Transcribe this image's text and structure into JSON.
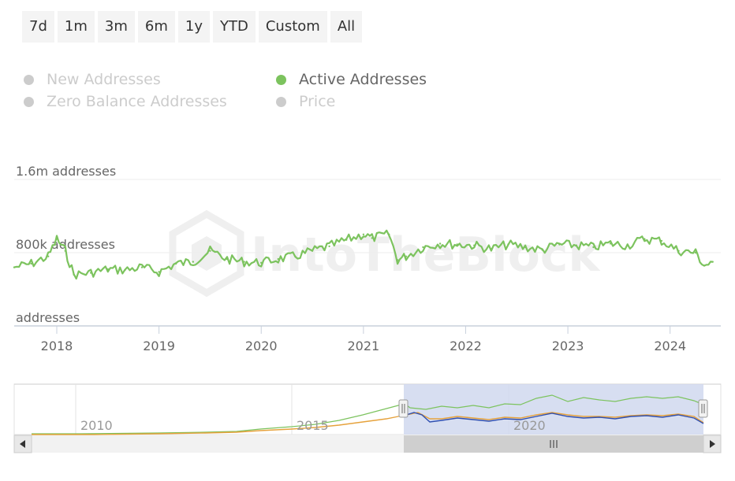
{
  "range_buttons": [
    "7d",
    "1m",
    "3m",
    "6m",
    "1y",
    "YTD",
    "Custom",
    "All"
  ],
  "legend": [
    {
      "label": "New Addresses",
      "active": false
    },
    {
      "label": "Active Addresses",
      "active": true
    },
    {
      "label": "Zero Balance Addresses",
      "active": false
    },
    {
      "label": "Price",
      "active": false
    }
  ],
  "watermark": "IntoTheBlock",
  "colors": {
    "active": "#7cc35e",
    "inactive": "#cccccc",
    "selection": "#d0d8ee",
    "price": "#e6a23c",
    "blue": "#2f4fb0"
  },
  "chart_data": {
    "type": "line",
    "x_ticks": [
      "2018",
      "2019",
      "2020",
      "2021",
      "2022",
      "2023",
      "2024"
    ],
    "y_tick_labels": [
      "1.6m addresses",
      "800k addresses",
      "addresses"
    ],
    "y_ticks": [
      1600000,
      800000,
      0
    ],
    "ylim": [
      0,
      1600000
    ],
    "xlim": [
      "2017-08-01",
      "2024-06-30"
    ],
    "series": [
      {
        "name": "Active Addresses",
        "x": [
          "2017-08",
          "2017-10",
          "2017-12",
          "2018-01",
          "2018-02",
          "2018-03",
          "2018-05",
          "2018-07",
          "2018-09",
          "2018-11",
          "2019-01",
          "2019-03",
          "2019-05",
          "2019-07",
          "2019-09",
          "2019-11",
          "2020-01",
          "2020-03",
          "2020-05",
          "2020-07",
          "2020-09",
          "2020-11",
          "2021-01",
          "2021-02",
          "2021-04",
          "2021-05",
          "2021-06",
          "2021-08",
          "2021-10",
          "2021-12",
          "2022-02",
          "2022-04",
          "2022-06",
          "2022-08",
          "2022-10",
          "2022-12",
          "2023-02",
          "2023-04",
          "2023-06",
          "2023-08",
          "2023-10",
          "2023-12",
          "2024-02",
          "2024-04",
          "2024-05",
          "2024-06"
        ],
        "values": [
          640000,
          680000,
          760000,
          950000,
          820000,
          560000,
          580000,
          620000,
          610000,
          640000,
          590000,
          680000,
          700000,
          820000,
          730000,
          700000,
          690000,
          730000,
          760000,
          820000,
          870000,
          940000,
          1000000,
          960000,
          1000000,
          720000,
          760000,
          860000,
          900000,
          890000,
          880000,
          840000,
          890000,
          860000,
          830000,
          890000,
          880000,
          860000,
          900000,
          880000,
          950000,
          930000,
          820000,
          800000,
          660000,
          700000
        ]
      }
    ],
    "navigator": {
      "x_ticks": [
        "2010",
        "2015",
        "2020"
      ],
      "selected_range": [
        "2017-08",
        "2024-06"
      ]
    }
  }
}
